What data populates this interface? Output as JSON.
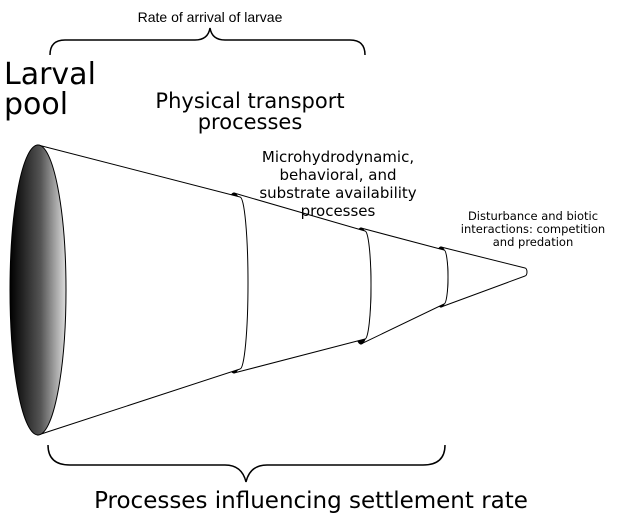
{
  "top_label": "Rate of arrival of larvae",
  "stages": [
    {
      "label": [
        "Larval",
        "pool"
      ]
    },
    {
      "label": [
        "Physical transport",
        "processes"
      ]
    },
    {
      "label": [
        "Microhydrodynamic,",
        "behavioral, and",
        "substrate availability",
        "processes"
      ]
    },
    {
      "label": [
        "Disturbance and biotic",
        "interactions: competition",
        "and predation"
      ]
    }
  ],
  "bottom_label": "Processes influencing settlement rate"
}
